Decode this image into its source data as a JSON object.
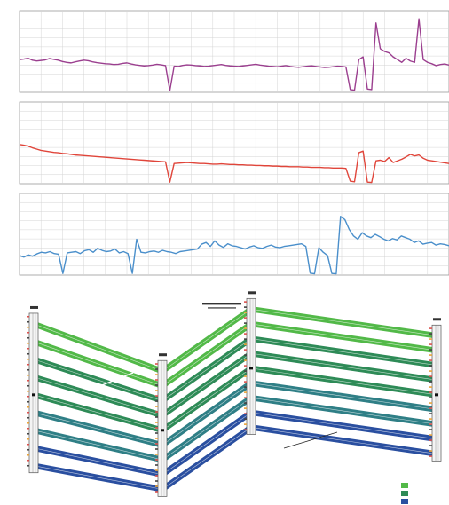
{
  "colors": {
    "panel_1": "#9b3f8f",
    "panel_2": "#e0453a",
    "panel_3": "#4a8fcb",
    "band_light": "#52b948",
    "band_mid": "#2e8b57",
    "band_teal": "#2f7f86",
    "band_dark": "#2a4fa0"
  },
  "chart_data": [
    {
      "type": "line",
      "title": "",
      "xlabel": "",
      "ylabel": "",
      "x_range": [
        0,
        100
      ],
      "ylim": [
        0,
        300
      ],
      "ytick_labels": [
        "",
        "",
        "",
        "",
        "",
        "",
        ""
      ],
      "grid": true,
      "series": [
        {
          "values": [
            120,
            122,
            125,
            118,
            115,
            117,
            119,
            124,
            121,
            118,
            113,
            110,
            108,
            112,
            115,
            118,
            116,
            112,
            109,
            107,
            105,
            104,
            102,
            103,
            106,
            108,
            104,
            101,
            99,
            97,
            98,
            100,
            103,
            101,
            98,
            6,
            96,
            95,
            99,
            101,
            100,
            98,
            97,
            95,
            96,
            98,
            100,
            102,
            99,
            97,
            96,
            95,
            97,
            99,
            101,
            103,
            100,
            98,
            96,
            95,
            94,
            96,
            98,
            95,
            93,
            92,
            94,
            96,
            97,
            95,
            93,
            91,
            92,
            94,
            96,
            95,
            93,
            10,
            8,
            120,
            130,
            12,
            10,
            255,
            160,
            150,
            145,
            130,
            120,
            110,
            125,
            115,
            110,
            270,
            120,
            110,
            105,
            98,
            102,
            104,
            100
          ]
        }
      ]
    },
    {
      "type": "line",
      "title": "",
      "xlabel": "",
      "ylabel": "",
      "x_range": [
        0,
        100
      ],
      "ylim": [
        0,
        250
      ],
      "ytick_labels": [
        "",
        "",
        "",
        "",
        "",
        ""
      ],
      "grid": true,
      "series": [
        {
          "values": [
            120,
            118,
            115,
            110,
            106,
            102,
            100,
            98,
            96,
            95,
            93,
            92,
            90,
            88,
            87,
            86,
            85,
            84,
            83,
            82,
            81,
            80,
            79,
            78,
            77,
            76,
            75,
            74,
            73,
            72,
            71,
            70,
            69,
            68,
            67,
            5,
            62,
            63,
            64,
            65,
            64,
            63,
            62,
            62,
            61,
            60,
            60,
            61,
            60,
            59,
            59,
            58,
            58,
            57,
            57,
            56,
            56,
            55,
            55,
            54,
            54,
            53,
            53,
            52,
            52,
            52,
            51,
            51,
            50,
            50,
            50,
            49,
            49,
            48,
            48,
            48,
            47,
            8,
            6,
            95,
            100,
            5,
            4,
            70,
            72,
            68,
            80,
            65,
            70,
            75,
            82,
            90,
            85,
            88,
            78,
            72,
            70,
            68,
            66,
            64,
            62
          ]
        }
      ]
    },
    {
      "type": "line",
      "title": "",
      "xlabel": "",
      "ylabel": "",
      "x_range": [
        0,
        100
      ],
      "ylim": [
        0,
        250
      ],
      "ytick_labels": [
        "",
        "",
        "",
        "",
        "",
        ""
      ],
      "grid": true,
      "series": [
        {
          "values": [
            60,
            55,
            62,
            58,
            65,
            70,
            68,
            72,
            66,
            64,
            5,
            68,
            70,
            72,
            66,
            75,
            78,
            70,
            82,
            76,
            72,
            74,
            80,
            68,
            72,
            66,
            5,
            110,
            70,
            68,
            72,
            74,
            70,
            76,
            72,
            70,
            66,
            72,
            74,
            76,
            78,
            80,
            95,
            100,
            88,
            105,
            92,
            85,
            96,
            90,
            88,
            84,
            80,
            86,
            90,
            84,
            82,
            88,
            92,
            86,
            84,
            88,
            90,
            92,
            94,
            96,
            88,
            6,
            4,
            84,
            70,
            60,
            5,
            4,
            180,
            170,
            140,
            120,
            110,
            130,
            120,
            115,
            125,
            118,
            110,
            105,
            112,
            108,
            120,
            115,
            110,
            100,
            105,
            95,
            98,
            100,
            92,
            96,
            94,
            90
          ]
        }
      ]
    },
    {
      "type": "line",
      "title": "",
      "xlabel": "",
      "ylabel": "",
      "categories": [
        "",
        "",
        "",
        ""
      ],
      "legend_position": "bottom-right",
      "legend": [
        "",
        "",
        ""
      ],
      "series": [
        {
          "values": [
            61,
            45,
            66,
            57
          ]
        },
        {
          "values": [
            55,
            40,
            61,
            52
          ]
        },
        {
          "values": [
            49,
            35,
            56,
            47
          ]
        },
        {
          "values": [
            43,
            30,
            51,
            42
          ]
        },
        {
          "values": [
            37,
            25,
            46,
            37
          ]
        },
        {
          "values": [
            31,
            20,
            41,
            32
          ]
        },
        {
          "values": [
            25,
            15,
            36,
            27
          ]
        },
        {
          "values": [
            19,
            10,
            31,
            22
          ]
        },
        {
          "values": [
            13,
            5,
            26,
            17
          ]
        }
      ]
    }
  ]
}
